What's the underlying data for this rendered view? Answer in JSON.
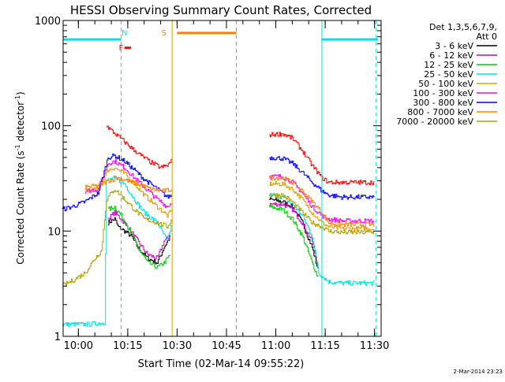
{
  "chart_data": {
    "type": "line",
    "title": "HESSI Observing Summary Count Rates, Corrected",
    "xlabel": "Start Time (02-Mar-14 09:55:22)",
    "ylabel_prefix": "Corrected Count Rate (s",
    "ylabel_sup1": "-1",
    "ylabel_mid": " detector",
    "ylabel_sup2": "-1",
    "ylabel_suffix": ")",
    "y_scale": "log",
    "ylim": [
      1,
      1000
    ],
    "y_ticks": [
      {
        "value": 1,
        "label": "1"
      },
      {
        "value": 10,
        "label": "10"
      },
      {
        "value": 100,
        "label": "100"
      },
      {
        "value": 1000,
        "label": "1000"
      }
    ],
    "x_range": [
      "09:55:22",
      "11:32:00"
    ],
    "x_ticks": [
      {
        "value": "10:00",
        "label": "10:00"
      },
      {
        "value": "10:15",
        "label": "10:15"
      },
      {
        "value": "10:30",
        "label": "10:30"
      },
      {
        "value": "10:45",
        "label": "10:45"
      },
      {
        "value": "11:00",
        "label": "11:00"
      },
      {
        "value": "11:15",
        "label": "11:15"
      },
      {
        "value": "11:30",
        "label": "11:30"
      }
    ],
    "legend_header": [
      "Det 1,3,5,6,7,9,",
      "Att 0"
    ],
    "legend_placement": "right",
    "series": [
      {
        "name": "3 - 6 keV",
        "color": "#000000",
        "seg1": [
          [
            "10:09",
            12
          ],
          [
            "10:11",
            13
          ],
          [
            "10:12",
            11
          ],
          [
            "10:14",
            10
          ],
          [
            "10:16",
            9
          ],
          [
            "10:18",
            7
          ],
          [
            "10:21",
            5.5
          ],
          [
            "10:24",
            5
          ],
          [
            "10:26",
            7
          ],
          [
            "10:28",
            9
          ]
        ],
        "seg2": [
          [
            "10:58",
            20
          ],
          [
            "11:02",
            19
          ],
          [
            "11:05",
            17
          ],
          [
            "11:08",
            12
          ],
          [
            "11:11",
            7
          ],
          [
            "11:13",
            4
          ]
        ]
      },
      {
        "name": "6 - 12 keV",
        "color": "#cc00cc",
        "seg1": [
          [
            "10:09",
            13
          ],
          [
            "10:11",
            15
          ],
          [
            "10:13",
            13
          ],
          [
            "10:15",
            11
          ],
          [
            "10:18",
            8
          ],
          [
            "10:21",
            6
          ],
          [
            "10:24",
            5.5
          ],
          [
            "10:26",
            8
          ],
          [
            "10:28",
            9
          ]
        ],
        "seg2": [
          [
            "10:58",
            18
          ],
          [
            "11:02",
            18
          ],
          [
            "11:05",
            16
          ],
          [
            "11:08",
            12
          ],
          [
            "11:11",
            8
          ],
          [
            "11:13",
            4.5
          ]
        ]
      },
      {
        "name": "12 - 25 keV",
        "color": "#00cc00",
        "seg1": [
          [
            "10:09",
            16
          ],
          [
            "10:11",
            17
          ],
          [
            "10:13",
            14
          ],
          [
            "10:15",
            11
          ],
          [
            "10:18",
            7
          ],
          [
            "10:21",
            5
          ],
          [
            "10:24",
            4.5
          ],
          [
            "10:26",
            5
          ],
          [
            "10:28",
            6
          ]
        ],
        "seg2": [
          [
            "10:58",
            17
          ],
          [
            "11:02",
            16
          ],
          [
            "11:05",
            13
          ],
          [
            "11:08",
            9
          ],
          [
            "11:11",
            5
          ],
          [
            "11:13",
            3.5
          ]
        ]
      },
      {
        "name": "25 - 50 keV",
        "color": "#00e0e0",
        "seg1": [
          [
            "09:55",
            1.3
          ],
          [
            "10:03",
            1.3
          ],
          [
            "10:08",
            1.35
          ],
          [
            "10:08.5",
            30
          ],
          [
            "10:11",
            32
          ],
          [
            "10:14",
            28
          ],
          [
            "10:17",
            20
          ],
          [
            "10:20",
            15
          ],
          [
            "10:24",
            12
          ],
          [
            "10:27",
            8
          ],
          [
            "10:28.5",
            12
          ]
        ],
        "seg2": [
          [
            "10:58",
            22
          ],
          [
            "11:02",
            21
          ],
          [
            "11:05",
            18
          ],
          [
            "11:08",
            14
          ],
          [
            "11:11",
            9
          ],
          [
            "11:13",
            4
          ],
          [
            "11:16",
            3.3
          ],
          [
            "11:20",
            3.2
          ],
          [
            "11:25",
            3.2
          ],
          [
            "11:30",
            3.2
          ]
        ]
      },
      {
        "name": "50 - 100 keV",
        "color": "#e0a000",
        "seg1": [
          [
            "10:02",
            24
          ],
          [
            "10:06",
            25
          ],
          [
            "10:09",
            38
          ],
          [
            "10:11",
            40
          ],
          [
            "10:14",
            35
          ],
          [
            "10:17",
            28
          ],
          [
            "10:20",
            22
          ],
          [
            "10:24",
            17
          ],
          [
            "10:27",
            14
          ],
          [
            "10:28.5",
            16
          ]
        ],
        "seg2": [
          [
            "10:58",
            28
          ],
          [
            "11:02",
            28
          ],
          [
            "11:05",
            25
          ],
          [
            "11:08",
            20
          ],
          [
            "11:11",
            15
          ],
          [
            "11:14",
            12
          ],
          [
            "11:16",
            11
          ],
          [
            "11:20",
            10.5
          ],
          [
            "11:25",
            10.5
          ],
          [
            "11:30",
            10.5
          ]
        ]
      },
      {
        "name": "100 - 300 keV",
        "color": "#ff00ff",
        "seg1": [
          [
            "10:02",
            24
          ],
          [
            "10:06",
            25
          ],
          [
            "10:09",
            44
          ],
          [
            "10:11",
            46
          ],
          [
            "10:14",
            40
          ],
          [
            "10:17",
            32
          ],
          [
            "10:20",
            26
          ],
          [
            "10:24",
            20
          ],
          [
            "10:27",
            17
          ],
          [
            "10:28.5",
            19
          ]
        ],
        "seg2": [
          [
            "10:58",
            33
          ],
          [
            "11:02",
            33
          ],
          [
            "11:05",
            29
          ],
          [
            "11:08",
            23
          ],
          [
            "11:11",
            17
          ],
          [
            "11:14",
            14
          ],
          [
            "11:16",
            13
          ],
          [
            "11:20",
            12.5
          ],
          [
            "11:25",
            12.5
          ],
          [
            "11:30",
            12.5
          ]
        ]
      },
      {
        "name": "300 - 800 keV",
        "color": "#0000ff",
        "seg1": [
          [
            "09:55",
            16
          ],
          [
            "09:58",
            17
          ],
          [
            "10:02",
            19
          ],
          [
            "10:06",
            23
          ],
          [
            "10:09",
            50
          ],
          [
            "10:11",
            52
          ],
          [
            "10:14",
            46
          ],
          [
            "10:17",
            38
          ],
          [
            "10:20",
            31
          ],
          [
            "10:24",
            25
          ],
          [
            "10:27",
            21
          ],
          [
            "10:28.5",
            22
          ]
        ],
        "seg2": [
          [
            "10:58",
            50
          ],
          [
            "11:02",
            49
          ],
          [
            "11:05",
            44
          ],
          [
            "11:08",
            36
          ],
          [
            "11:11",
            29
          ],
          [
            "11:14",
            24
          ],
          [
            "11:16",
            22
          ],
          [
            "11:20",
            21
          ],
          [
            "11:25",
            21
          ],
          [
            "11:30",
            21
          ]
        ]
      },
      {
        "name": "800 - 7000 keV",
        "color": "#ff8000",
        "seg1": [
          [
            "10:02",
            26
          ],
          [
            "10:06",
            27
          ],
          [
            "10:09",
            30
          ],
          [
            "10:12",
            32
          ],
          [
            "10:15",
            30
          ],
          [
            "10:18",
            28
          ],
          [
            "10:22",
            25
          ],
          [
            "10:26",
            24
          ],
          [
            "10:28.5",
            25
          ]
        ],
        "seg2": [
          [
            "10:58",
            32
          ],
          [
            "11:02",
            32
          ],
          [
            "11:05",
            29
          ],
          [
            "11:08",
            24
          ],
          [
            "11:11",
            19
          ],
          [
            "11:14",
            15
          ],
          [
            "11:16",
            12
          ],
          [
            "11:20",
            11.5
          ],
          [
            "11:25",
            11.5
          ],
          [
            "11:30",
            11.5
          ]
        ]
      },
      {
        "name": "7000 - 20000 keV",
        "color": "#b0a000",
        "seg1": [
          [
            "09:55",
            3
          ],
          [
            "09:59",
            3.5
          ],
          [
            "10:02",
            4
          ],
          [
            "10:05",
            5.5
          ],
          [
            "10:07",
            6.5
          ],
          [
            "10:08.5",
            20
          ],
          [
            "10:11",
            25
          ],
          [
            "10:14",
            20
          ],
          [
            "10:17",
            16
          ],
          [
            "10:20",
            13
          ],
          [
            "10:24",
            12
          ],
          [
            "10:27",
            11
          ],
          [
            "10:28.5",
            13
          ]
        ],
        "seg2": [
          [
            "10:58",
            22
          ],
          [
            "11:02",
            22
          ],
          [
            "11:05",
            19
          ],
          [
            "11:08",
            15
          ],
          [
            "11:11",
            12
          ],
          [
            "11:14",
            11
          ],
          [
            "11:16",
            10
          ],
          [
            "11:20",
            9.7
          ],
          [
            "11:25",
            9.7
          ],
          [
            "11:30",
            9.7
          ]
        ]
      }
    ],
    "extra_series": [
      {
        "color": "#ff0000",
        "unlabeled": true,
        "seg1": [
          [
            "10:08.5",
            100
          ],
          [
            "10:10",
            90
          ],
          [
            "10:13",
            75
          ],
          [
            "10:16",
            62
          ],
          [
            "10:19",
            52
          ],
          [
            "10:22",
            45
          ],
          [
            "10:25",
            40
          ],
          [
            "10:27",
            42
          ],
          [
            "10:28.5",
            47
          ]
        ],
        "seg2": [
          [
            "10:58",
            82
          ],
          [
            "11:02",
            84
          ],
          [
            "11:05",
            76
          ],
          [
            "11:08",
            58
          ],
          [
            "11:11",
            42
          ],
          [
            "11:14",
            32
          ],
          [
            "11:16",
            29
          ],
          [
            "11:20",
            29
          ],
          [
            "11:25",
            29
          ],
          [
            "11:30",
            29
          ]
        ]
      }
    ],
    "status_flags": [
      {
        "label": "N",
        "color": "#00e0e0",
        "time": "10:14"
      },
      {
        "label": "F",
        "color": "#ff0000",
        "time": "10:13"
      },
      {
        "label": "S",
        "color": "#ff8000",
        "time": "10:26"
      }
    ],
    "status_bars": [
      {
        "color": "#00e0e0",
        "start": "09:55:22",
        "end": "10:13",
        "value": 660
      },
      {
        "color": "#00e0e0",
        "start": "11:14",
        "end": "11:31",
        "value": 660
      },
      {
        "color": "#ff0000",
        "start": "10:14",
        "end": "10:16",
        "value": 550
      },
      {
        "color": "#ff8000",
        "start": "10:30",
        "end": "10:48",
        "value": 760
      }
    ],
    "vertical_markers": [
      {
        "time": "10:13",
        "color": "#00e0e0",
        "style": "dashed"
      },
      {
        "time": "10:28.5",
        "color": "#e0a000",
        "style": "solid"
      },
      {
        "time": "10:48",
        "color": "#ff8000",
        "style": "dashed"
      },
      {
        "time": "11:14",
        "color": "#00e0e0",
        "style": "solid"
      },
      {
        "time": "11:30.5",
        "color": "#00e0e0",
        "style": "dashed"
      }
    ]
  },
  "timestamp": "2-Mar-2014 23:23"
}
